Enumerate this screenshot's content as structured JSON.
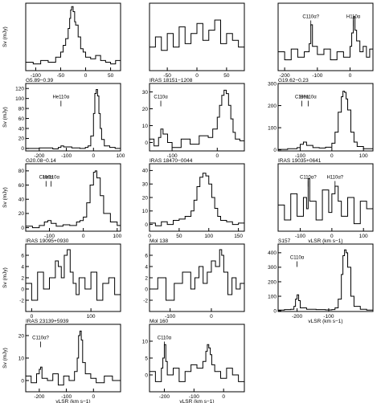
{
  "chart_data": [
    {
      "type": "line",
      "title": "",
      "xlabel": "",
      "ylabel": "Sv (mJy)",
      "xlim": [
        -120,
        70
      ],
      "ylim": [
        -5,
        35
      ],
      "xticks": [
        -100,
        -50,
        0,
        50
      ],
      "yticks": [],
      "annotations": [],
      "series": [
        {
          "x": [
            -120,
            -105,
            -90,
            -75,
            -60,
            -50,
            -45,
            -40,
            -35,
            -32,
            -30,
            -28,
            -25,
            -22,
            -20,
            -15,
            -10,
            -5,
            0,
            10,
            20,
            30,
            40,
            50,
            60,
            70
          ],
          "y": [
            0,
            -1,
            1,
            0,
            3,
            6,
            10,
            14,
            20,
            26,
            31,
            33,
            30,
            24,
            22,
            15,
            8,
            6,
            3,
            2,
            4,
            1,
            0,
            -1,
            1,
            0
          ]
        }
      ]
    },
    {
      "type": "line",
      "title": "",
      "xlabel": "",
      "ylabel": "",
      "xlim": [
        -80,
        80
      ],
      "ylim": [
        -5,
        15
      ],
      "xticks": [
        -50,
        0,
        50
      ],
      "yticks": [],
      "annotations": [],
      "series": [
        {
          "x": [
            -80,
            -70,
            -60,
            -50,
            -40,
            -30,
            -20,
            -10,
            0,
            10,
            20,
            30,
            40,
            50,
            60,
            70,
            80
          ],
          "y": [
            2,
            5,
            1,
            6,
            2,
            8,
            3,
            6,
            9,
            4,
            7,
            10,
            3,
            6,
            4,
            2,
            5
          ]
        }
      ]
    },
    {
      "type": "line",
      "title": "",
      "xlabel": "",
      "ylabel": "",
      "xlim": [
        -220,
        70
      ],
      "ylim": [
        -5,
        20
      ],
      "xticks": [
        -200,
        -100,
        0
      ],
      "yticks": [],
      "annotations": [
        {
          "text": "C110α?",
          "x": -120
        },
        {
          "text": "H110α",
          "x": 10
        }
      ],
      "series": [
        {
          "x": [
            -220,
            -200,
            -180,
            -160,
            -140,
            -125,
            -120,
            -115,
            -100,
            -80,
            -60,
            -40,
            -20,
            0,
            5,
            10,
            15,
            20,
            30,
            40,
            50,
            60,
            70
          ],
          "y": [
            2,
            -1,
            3,
            0,
            2,
            5,
            12,
            4,
            1,
            3,
            -1,
            2,
            0,
            4,
            9,
            15,
            10,
            6,
            2,
            4,
            0,
            3,
            1
          ]
        }
      ]
    },
    {
      "type": "line",
      "title": "G5.89−0.39",
      "xlabel": "",
      "ylabel": "Sv (mJy)",
      "xlim": [
        -250,
        100
      ],
      "ylim": [
        -5,
        130
      ],
      "xticks": [
        -200,
        -100,
        0,
        100
      ],
      "yticks": [
        0,
        20,
        40,
        60,
        80,
        100,
        120
      ],
      "annotations": [
        {
          "text": "He110α",
          "x": -120
        }
      ],
      "series": [
        {
          "x": [
            -250,
            -200,
            -150,
            -130,
            -120,
            -110,
            -80,
            -50,
            -30,
            -20,
            -10,
            0,
            5,
            10,
            15,
            20,
            25,
            30,
            40,
            60,
            80,
            100
          ],
          "y": [
            0,
            1,
            -1,
            2,
            5,
            3,
            1,
            0,
            2,
            5,
            25,
            70,
            110,
            118,
            105,
            70,
            40,
            18,
            5,
            2,
            0,
            1
          ]
        }
      ]
    },
    {
      "type": "line",
      "title": "IRAS 18151−1208",
      "xlabel": "",
      "ylabel": "",
      "xlim": [
        -150,
        60
      ],
      "ylim": [
        -5,
        35
      ],
      "xticks": [
        -100,
        0
      ],
      "yticks": [
        0,
        10,
        20,
        30
      ],
      "annotations": [
        {
          "text": "C110α",
          "x": -125
        }
      ],
      "series": [
        {
          "x": [
            -150,
            -140,
            -130,
            -125,
            -120,
            -110,
            -100,
            -80,
            -60,
            -40,
            -20,
            -10,
            0,
            5,
            10,
            15,
            20,
            25,
            30,
            35,
            40,
            50,
            60
          ],
          "y": [
            2,
            -2,
            3,
            8,
            5,
            0,
            -3,
            2,
            -1,
            4,
            3,
            8,
            15,
            22,
            28,
            31,
            29,
            22,
            14,
            6,
            2,
            1,
            0
          ]
        }
      ]
    },
    {
      "type": "line",
      "title": "G19.62−0.23",
      "xlabel": "",
      "ylabel": "",
      "xlim": [
        -170,
        130
      ],
      "ylim": [
        -5,
        300
      ],
      "xticks": [
        -100,
        0,
        100
      ],
      "yticks": [
        0,
        100,
        200,
        300
      ],
      "annotations": [
        {
          "text": "C110α",
          "x": -95
        },
        {
          "text": "He110α",
          "x": -75
        }
      ],
      "series": [
        {
          "x": [
            -170,
            -140,
            -110,
            -100,
            -90,
            -80,
            -60,
            -40,
            -20,
            0,
            10,
            20,
            30,
            35,
            40,
            45,
            50,
            60,
            70,
            80,
            100,
            130
          ],
          "y": [
            2,
            5,
            10,
            25,
            35,
            20,
            10,
            8,
            12,
            30,
            80,
            170,
            240,
            265,
            260,
            230,
            180,
            80,
            35,
            15,
            5,
            2
          ]
        }
      ]
    },
    {
      "type": "line",
      "title": "G20.08−0.14",
      "xlabel": "",
      "ylabel": "Sv (mJy)",
      "xlim": [
        -170,
        110
      ],
      "ylim": [
        -5,
        90
      ],
      "xticks": [
        -100,
        0,
        100
      ],
      "yticks": [
        0,
        20,
        40,
        60,
        80
      ],
      "annotations": [
        {
          "text": "C110α",
          "x": -110
        },
        {
          "text": "He110α",
          "x": -95
        }
      ],
      "series": [
        {
          "x": [
            -170,
            -150,
            -130,
            -115,
            -105,
            -95,
            -80,
            -60,
            -40,
            -20,
            -10,
            0,
            10,
            20,
            30,
            35,
            40,
            50,
            60,
            80,
            100,
            110
          ],
          "y": [
            2,
            0,
            3,
            8,
            10,
            6,
            2,
            4,
            3,
            8,
            10,
            15,
            35,
            60,
            78,
            80,
            70,
            45,
            20,
            8,
            3,
            1
          ]
        }
      ]
    },
    {
      "type": "line",
      "title": "IRAS 18470−0044",
      "xlabel": "",
      "ylabel": "",
      "xlim": [
        0,
        160
      ],
      "ylim": [
        -5,
        45
      ],
      "xticks": [
        0,
        50,
        100,
        150
      ],
      "yticks": [
        0,
        10,
        20,
        30,
        40
      ],
      "annotations": [],
      "series": [
        {
          "x": [
            0,
            10,
            20,
            30,
            40,
            50,
            60,
            70,
            75,
            80,
            85,
            90,
            95,
            100,
            105,
            110,
            115,
            120,
            130,
            140,
            150,
            160
          ],
          "y": [
            1,
            -1,
            2,
            0,
            3,
            4,
            6,
            10,
            18,
            28,
            35,
            38,
            36,
            30,
            20,
            12,
            6,
            3,
            2,
            0,
            1,
            -1
          ]
        }
      ]
    },
    {
      "type": "line",
      "title": "IRAS 19035+0641",
      "xlabel": "vLSR (km s−1)",
      "ylabel": "",
      "xlim": [
        -170,
        130
      ],
      "ylim": [
        -6,
        12
      ],
      "xticks": [
        -100,
        0,
        100
      ],
      "yticks": [],
      "annotations": [
        {
          "text": "C110α?",
          "x": -75
        },
        {
          "text": "H110α?",
          "x": 10
        }
      ],
      "series": [
        {
          "x": [
            -170,
            -150,
            -130,
            -110,
            -90,
            -80,
            -75,
            -70,
            -50,
            -30,
            -10,
            0,
            10,
            20,
            30,
            50,
            70,
            90,
            110,
            130
          ],
          "y": [
            1,
            -3,
            4,
            -2,
            3,
            0,
            8,
            2,
            -3,
            5,
            -1,
            4,
            6,
            2,
            -2,
            3,
            -4,
            2,
            0,
            1
          ]
        }
      ]
    },
    {
      "type": "line",
      "title": "IRAS 19095+0930",
      "xlabel": "",
      "ylabel": "Sv (mJy)",
      "xlim": [
        -10,
        150
      ],
      "ylim": [
        -4,
        8
      ],
      "xticks": [
        0,
        100
      ],
      "yticks": [
        -2,
        0,
        2,
        4,
        6
      ],
      "annotations": [],
      "series": [
        {
          "x": [
            -10,
            0,
            10,
            20,
            30,
            40,
            45,
            50,
            55,
            60,
            65,
            70,
            75,
            80,
            90,
            100,
            110,
            120,
            130,
            140,
            150
          ],
          "y": [
            1,
            -2,
            3,
            0,
            2,
            5,
            4,
            2,
            6,
            7,
            3,
            1,
            -1,
            2,
            0,
            3,
            -2,
            1,
            2,
            -1,
            0
          ]
        }
      ]
    },
    {
      "type": "line",
      "title": "Mol 138",
      "xlabel": "",
      "ylabel": "",
      "xlim": [
        -150,
        80
      ],
      "ylim": [
        -4,
        8
      ],
      "xticks": [
        -100,
        0
      ],
      "yticks": [
        -2,
        0,
        2,
        4,
        6
      ],
      "annotations": [],
      "series": [
        {
          "x": [
            -150,
            -130,
            -110,
            -90,
            -70,
            -50,
            -40,
            -30,
            -20,
            -10,
            0,
            10,
            20,
            25,
            30,
            40,
            50,
            60,
            70,
            80
          ],
          "y": [
            0,
            2,
            -2,
            1,
            3,
            0,
            2,
            4,
            1,
            3,
            5,
            4,
            7,
            6,
            3,
            -1,
            2,
            0,
            1,
            -2
          ]
        }
      ]
    },
    {
      "type": "line",
      "title": "S157",
      "xlabel": "vLSR (km s−1)",
      "ylabel": "",
      "xlim": [
        -260,
        40
      ],
      "ylim": [
        -5,
        460
      ],
      "xticks": [
        -200,
        -100
      ],
      "yticks": [
        0,
        100,
        200,
        300,
        400
      ],
      "annotations": [
        {
          "text": "C110α",
          "x": -200
        }
      ],
      "series": [
        {
          "x": [
            -260,
            -240,
            -220,
            -210,
            -205,
            -200,
            -195,
            -190,
            -170,
            -140,
            -110,
            -90,
            -80,
            -70,
            -60,
            -55,
            -50,
            -45,
            -40,
            -30,
            -20,
            0,
            20,
            40
          ],
          "y": [
            5,
            8,
            10,
            30,
            80,
            110,
            70,
            20,
            10,
            8,
            6,
            8,
            20,
            80,
            250,
            380,
            420,
            400,
            300,
            100,
            30,
            10,
            5,
            2
          ]
        }
      ]
    },
    {
      "type": "line",
      "title": "IRAS 23139+5939",
      "xlabel": "vLSR (km s−1)",
      "ylabel": "Sv (mJy)",
      "xlim": [
        -250,
        100
      ],
      "ylim": [
        -5,
        25
      ],
      "xticks": [
        -200,
        -100,
        0
      ],
      "yticks": [
        0,
        10,
        20
      ],
      "annotations": [
        {
          "text": "C110α?",
          "x": -195
        }
      ],
      "series": [
        {
          "x": [
            -250,
            -230,
            -210,
            -200,
            -195,
            -190,
            -170,
            -150,
            -130,
            -110,
            -90,
            -70,
            -60,
            -55,
            -50,
            -45,
            -40,
            -30,
            -10,
            10,
            40,
            70,
            100
          ],
          "y": [
            2,
            -1,
            3,
            5,
            6,
            1,
            0,
            3,
            -2,
            2,
            0,
            4,
            10,
            20,
            22,
            18,
            8,
            3,
            1,
            -1,
            2,
            0,
            1
          ]
        }
      ]
    },
    {
      "type": "line",
      "title": "Mol 160",
      "xlabel": "vLSR (km s−1)",
      "ylabel": "",
      "xlim": [
        -250,
        70
      ],
      "ylim": [
        -5,
        15
      ],
      "xticks": [
        -200,
        -100,
        0
      ],
      "yticks": [
        0,
        5,
        10
      ],
      "annotations": [
        {
          "text": "C110α",
          "x": -200
        }
      ],
      "series": [
        {
          "x": [
            -250,
            -230,
            -210,
            -205,
            -200,
            -195,
            -190,
            -170,
            -150,
            -130,
            -110,
            -90,
            -70,
            -60,
            -55,
            -50,
            -45,
            -40,
            -30,
            -10,
            10,
            30,
            50,
            70
          ],
          "y": [
            1,
            -2,
            2,
            5,
            9,
            4,
            0,
            2,
            -2,
            1,
            3,
            2,
            4,
            7,
            9,
            8,
            6,
            3,
            1,
            -1,
            2,
            0,
            -2,
            1
          ]
        }
      ]
    }
  ]
}
